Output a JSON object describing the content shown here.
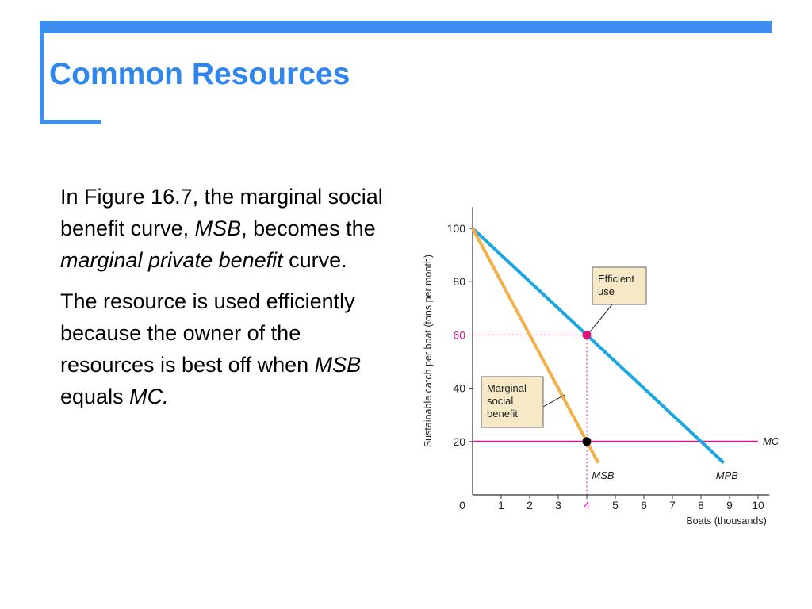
{
  "slide": {
    "title": "Common Resources",
    "accent_color": "#3d8ef0",
    "title_color": "#2f86ec"
  },
  "paragraphs": [
    {
      "parts": [
        {
          "text": "In Figure 16.7, the marginal social benefit curve, ",
          "italic": false
        },
        {
          "text": "MSB",
          "italic": true
        },
        {
          "text": ", becomes the ",
          "italic": false
        },
        {
          "text": "marginal private benefit",
          "italic": true
        },
        {
          "text": " curve.",
          "italic": false
        }
      ]
    },
    {
      "parts": [
        {
          "text": "The resource is used efficiently because the owner of the resources is best off when ",
          "italic": false
        },
        {
          "text": "MSB",
          "italic": true
        },
        {
          "text": " equals ",
          "italic": false
        },
        {
          "text": "MC.",
          "italic": true
        }
      ]
    }
  ],
  "chart_data": {
    "type": "line",
    "xlabel": "Boats  (thousands)",
    "ylabel": "Sustainable catch per boat (tons per month)",
    "xlim": [
      0,
      10.4
    ],
    "ylim": [
      0,
      108
    ],
    "x_ticks": [
      "0",
      "1",
      "2",
      "3",
      "4",
      "5",
      "6",
      "7",
      "8",
      "9",
      "10"
    ],
    "y_ticks": [
      "20",
      "40",
      "60",
      "80",
      "100"
    ],
    "highlight_x_tick": "4",
    "highlight_y_tick": "60",
    "grid": false,
    "series": [
      {
        "name": "MPB",
        "color": "#1aa6e0",
        "x": [
          0,
          8.8
        ],
        "y": [
          100,
          12
        ]
      },
      {
        "name": "MSB",
        "color": "#f2b04a",
        "x": [
          0,
          4.4
        ],
        "y": [
          100,
          12
        ]
      },
      {
        "name": "MC",
        "color": "#d6158a",
        "x": [
          0,
          10
        ],
        "y": [
          20,
          20
        ]
      }
    ],
    "points": [
      {
        "name": "efficient-use",
        "x": 4,
        "y": 60,
        "color": "#e0157a"
      },
      {
        "name": "msb-equals-mc",
        "x": 4,
        "y": 20,
        "color": "#000000"
      }
    ],
    "annotations": [
      {
        "name": "efficient-use",
        "lines": [
          "Efficient",
          "use"
        ]
      },
      {
        "name": "marginal-social-benefit",
        "lines": [
          "Marginal",
          "social",
          "benefit"
        ]
      }
    ],
    "annotation_fill": "#f7e9c6"
  }
}
